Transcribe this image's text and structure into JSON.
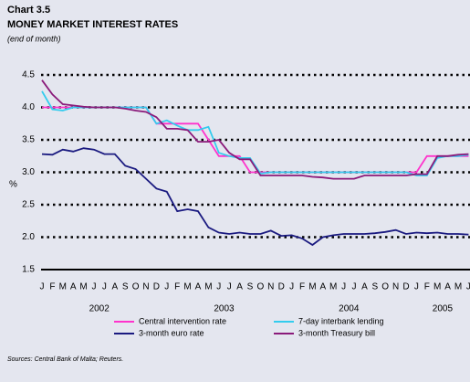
{
  "chart_data": {
    "type": "line",
    "label": "Chart 3.5",
    "title": "MONEY MARKET INTEREST RATES",
    "subtitle": "(end of month)",
    "ylabel": "%",
    "source": "Sources: Central Bank of Malta; Reuters.",
    "categories": [
      "J",
      "F",
      "M",
      "A",
      "M",
      "J",
      "J",
      "A",
      "S",
      "O",
      "N",
      "D",
      "J",
      "F",
      "M",
      "A",
      "M",
      "J",
      "J",
      "A",
      "S",
      "O",
      "N",
      "D",
      "J",
      "F",
      "M",
      "A",
      "M",
      "J",
      "J",
      "A",
      "S",
      "O",
      "N",
      "D",
      "J",
      "F",
      "M",
      "A",
      "M",
      "J"
    ],
    "years": [
      "2002",
      "2003",
      "2004",
      "2005"
    ],
    "ylim": [
      1.5,
      4.5
    ],
    "yticks": [
      {
        "value": 1.5,
        "label": "1.5"
      },
      {
        "value": 2,
        "label": "2.0"
      },
      {
        "value": 2.5,
        "label": "2.5"
      },
      {
        "value": 3,
        "label": "3.0"
      },
      {
        "value": 3.5,
        "label": "3.5"
      },
      {
        "value": 4,
        "label": "4.0"
      },
      {
        "value": 4.5,
        "label": "4.5"
      }
    ],
    "grid": true,
    "series": [
      {
        "name": "Central intervention rate",
        "color": "#ff33cc",
        "values": [
          4.0,
          4.0,
          4.0,
          4.0,
          4.0,
          4.0,
          4.0,
          4.0,
          4.0,
          4.0,
          4.0,
          3.75,
          3.75,
          3.75,
          3.75,
          3.75,
          3.5,
          3.25,
          3.25,
          3.25,
          3.0,
          3.0,
          3.0,
          3.0,
          3.0,
          3.0,
          3.0,
          3.0,
          3.0,
          3.0,
          3.0,
          3.0,
          3.0,
          3.0,
          3.0,
          3.0,
          3.0,
          3.25,
          3.25,
          3.25,
          3.25,
          3.25
        ]
      },
      {
        "name": "7-day interbank lending",
        "color": "#33ccee",
        "values": [
          4.25,
          3.97,
          3.95,
          4.0,
          4.0,
          4.0,
          4.0,
          4.0,
          4.0,
          4.0,
          4.0,
          3.75,
          3.8,
          3.72,
          3.65,
          3.65,
          3.7,
          3.3,
          3.25,
          3.22,
          3.22,
          2.98,
          3.0,
          3.0,
          3.0,
          3.0,
          3.0,
          3.0,
          3.0,
          3.0,
          3.0,
          3.0,
          3.0,
          3.0,
          3.0,
          3.0,
          2.95,
          2.95,
          3.22,
          3.25,
          3.25,
          3.27
        ]
      },
      {
        "name": "3-month euro rate",
        "color": "#1a1a80",
        "values": [
          3.28,
          3.27,
          3.35,
          3.32,
          3.37,
          3.35,
          3.28,
          3.28,
          3.1,
          3.05,
          2.9,
          2.75,
          2.7,
          2.4,
          2.43,
          2.4,
          2.15,
          2.07,
          2.05,
          2.07,
          2.05,
          2.05,
          2.1,
          2.02,
          2.03,
          1.98,
          1.88,
          2.0,
          2.03,
          2.05,
          2.05,
          2.05,
          2.06,
          2.08,
          2.11,
          2.05,
          2.07,
          2.06,
          2.07,
          2.05,
          2.05,
          2.04
        ]
      },
      {
        "name": "3-month Treasury bill",
        "color": "#8a1a7a",
        "values": [
          4.42,
          4.2,
          4.05,
          4.03,
          4.01,
          4.0,
          4.0,
          4.0,
          3.98,
          3.95,
          3.93,
          3.85,
          3.67,
          3.67,
          3.65,
          3.47,
          3.47,
          3.5,
          3.3,
          3.2,
          3.2,
          2.95,
          2.95,
          2.95,
          2.95,
          2.95,
          2.93,
          2.92,
          2.9,
          2.9,
          2.9,
          2.95,
          2.95,
          2.95,
          2.95,
          2.95,
          2.97,
          2.97,
          3.25,
          3.25,
          3.27,
          3.28
        ]
      }
    ]
  }
}
